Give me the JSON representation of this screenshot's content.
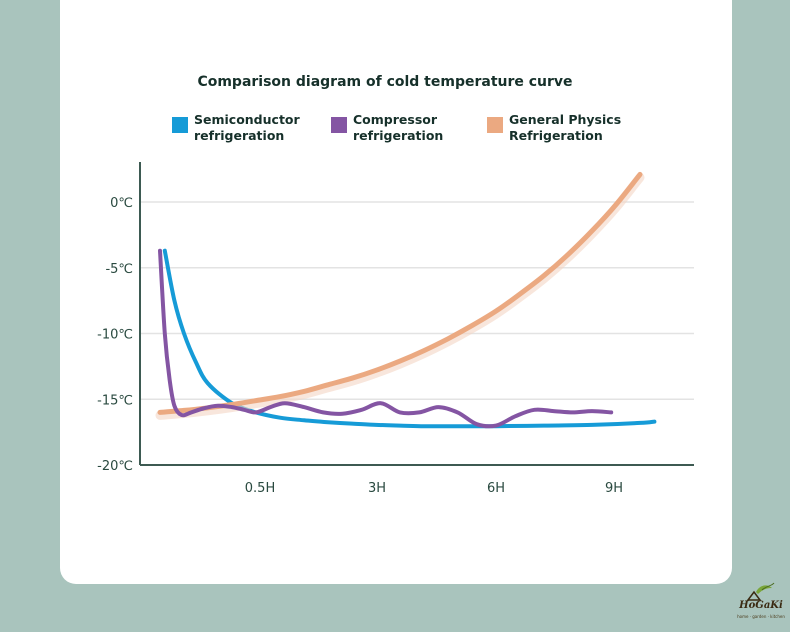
{
  "chart_data": {
    "type": "line",
    "title": "Comparison diagram of cold temperature curve",
    "xlabel": "",
    "ylabel": "",
    "x_ticks": [
      "0.5H",
      "3H",
      "6H",
      "9H"
    ],
    "y_ticks": [
      "0℃",
      "-5℃",
      "-10℃",
      "-15℃",
      "-20℃"
    ],
    "y_tick_values": [
      0,
      -5,
      -10,
      -15,
      -20
    ],
    "ylim": [
      -20,
      3
    ],
    "grid": true,
    "legend_position": "top",
    "series": [
      {
        "name": "Semiconductor\nrefrigeration",
        "color": "#169bd7",
        "x": [
          0.1,
          0.3,
          0.5,
          0.75,
          1.0,
          1.5,
          2.0,
          2.5,
          3.0,
          3.5,
          4.0,
          4.5,
          5.0,
          5.5,
          6.0,
          6.5,
          7.0,
          8.0,
          9.0,
          10.0,
          10.3
        ],
        "y": [
          -3.7,
          -7.5,
          -10.0,
          -12.2,
          -13.8,
          -15.3,
          -16.0,
          -16.4,
          -16.6,
          -16.75,
          -16.85,
          -16.95,
          -17.0,
          -17.05,
          -17.05,
          -17.05,
          -17.05,
          -17.0,
          -16.95,
          -16.8,
          -16.7
        ]
      },
      {
        "name": "Compressor\nrefrigeration",
        "color": "#8455a3",
        "x": [
          0.0,
          0.1,
          0.2,
          0.3,
          0.45,
          0.65,
          0.9,
          1.2,
          1.5,
          1.75,
          2.0,
          2.3,
          2.6,
          3.0,
          3.4,
          3.8,
          4.2,
          4.6,
          5.0,
          5.4,
          5.8,
          6.2,
          6.6,
          7.0,
          7.4,
          7.8,
          8.2,
          8.6,
          9.0,
          9.4
        ],
        "y": [
          -3.7,
          -10.0,
          -13.5,
          -15.5,
          -16.2,
          -16.0,
          -15.7,
          -15.5,
          -15.6,
          -15.8,
          -16.0,
          -15.6,
          -15.3,
          -15.6,
          -16.0,
          -16.1,
          -15.8,
          -15.3,
          -16.0,
          -16.0,
          -15.6,
          -16.0,
          -16.9,
          -17.0,
          -16.3,
          -15.8,
          -15.9,
          -16.0,
          -15.9,
          -16.0
        ]
      },
      {
        "name": "General Physics\nRefrigeration",
        "color": "#eba981",
        "x": [
          0.0,
          0.5,
          1.0,
          1.5,
          2.0,
          2.5,
          3.0,
          3.5,
          4.0,
          4.5,
          5.0,
          5.5,
          6.0,
          6.5,
          7.0,
          7.5,
          8.0,
          8.5,
          9.0,
          9.5,
          10.0
        ],
        "y": [
          -16.0,
          -15.85,
          -15.65,
          -15.4,
          -15.1,
          -14.8,
          -14.4,
          -13.9,
          -13.4,
          -12.8,
          -12.1,
          -11.3,
          -10.4,
          -9.4,
          -8.3,
          -7.0,
          -5.6,
          -4.0,
          -2.2,
          -0.2,
          2.1
        ]
      }
    ]
  }
}
